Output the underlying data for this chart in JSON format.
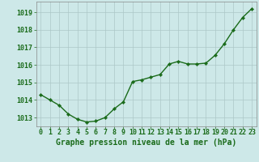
{
  "x": [
    0,
    1,
    2,
    3,
    4,
    5,
    6,
    7,
    8,
    9,
    10,
    11,
    12,
    13,
    14,
    15,
    16,
    17,
    18,
    19,
    20,
    21,
    22,
    23
  ],
  "y": [
    1014.3,
    1014.0,
    1013.7,
    1013.2,
    1012.9,
    1012.75,
    1012.8,
    1013.0,
    1013.5,
    1013.9,
    1015.05,
    1015.15,
    1015.3,
    1015.45,
    1016.05,
    1016.2,
    1016.05,
    1016.05,
    1016.1,
    1016.55,
    1017.2,
    1018.0,
    1018.7,
    1019.2
  ],
  "line_color": "#1a6b1a",
  "marker": "D",
  "marker_size": 2.2,
  "bg_color": "#cde8e8",
  "plot_bg_color": "#cde8e8",
  "grid_color": "#adc8c8",
  "xlabel": "Graphe pression niveau de la mer (hPa)",
  "xlabel_color": "#1a6b1a",
  "tick_color": "#1a6b1a",
  "ylim": [
    1012.5,
    1019.6
  ],
  "xlim": [
    -0.5,
    23.5
  ],
  "yticks": [
    1013,
    1014,
    1015,
    1016,
    1017,
    1018,
    1019
  ],
  "xticks": [
    0,
    1,
    2,
    3,
    4,
    5,
    6,
    7,
    8,
    9,
    10,
    11,
    12,
    13,
    14,
    15,
    16,
    17,
    18,
    19,
    20,
    21,
    22,
    23
  ],
  "xlabel_fontsize": 7,
  "tick_fontsize": 6,
  "line_width": 1.0,
  "axis_color": "#888888"
}
